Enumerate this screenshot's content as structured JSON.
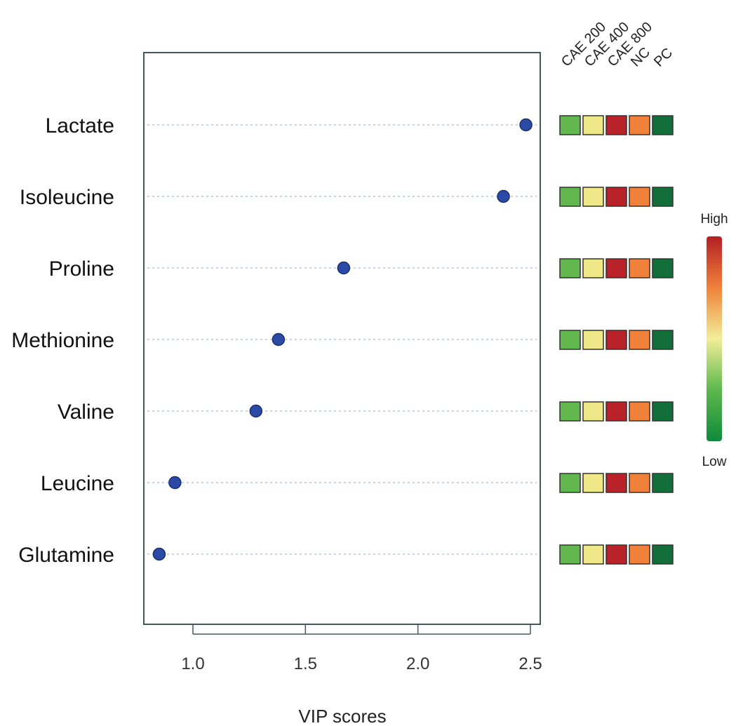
{
  "chart_data": {
    "type": "scatter",
    "title": "",
    "xlabel": "VIP scores",
    "ylabel": "",
    "xlim": [
      0.8,
      2.55
    ],
    "x_ticks": [
      1.0,
      1.5,
      2.0,
      2.5
    ],
    "x_tick_labels": [
      "1.0",
      "1.5",
      "2.0",
      "2.5"
    ],
    "grid": "horizontal dotted",
    "categories": [
      "Lactate",
      "Isoleucine",
      "Proline",
      "Methionine",
      "Valine",
      "Leucine",
      "Glutamine"
    ],
    "values": [
      2.48,
      2.38,
      1.67,
      1.38,
      1.28,
      0.92,
      0.85
    ],
    "point_color": "#2a4aa5",
    "heatmap": {
      "groups": [
        "CAE 200",
        "CAE 400",
        "CAE 800",
        "NC",
        "PC"
      ],
      "colors": [
        [
          "#62b84f",
          "#eee889",
          "#b82228",
          "#f0813b",
          "#136f3a"
        ],
        [
          "#62b84f",
          "#eee889",
          "#b82228",
          "#f0813b",
          "#136f3a"
        ],
        [
          "#62b84f",
          "#eee889",
          "#b82228",
          "#f0813b",
          "#136f3a"
        ],
        [
          "#62b84f",
          "#eee889",
          "#b82228",
          "#f0813b",
          "#136f3a"
        ],
        [
          "#62b84f",
          "#eee889",
          "#b82228",
          "#f0813b",
          "#136f3a"
        ],
        [
          "#62b84f",
          "#eee889",
          "#b82228",
          "#f0813b",
          "#136f3a"
        ],
        [
          "#62b84f",
          "#eee889",
          "#b82228",
          "#f0813b",
          "#136f3a"
        ]
      ]
    },
    "legend": {
      "high_label": "High",
      "low_label": "Low",
      "gradient": [
        "#b41f24",
        "#f0813b",
        "#f2ee98",
        "#5db84c",
        "#0f8a3d"
      ]
    }
  }
}
